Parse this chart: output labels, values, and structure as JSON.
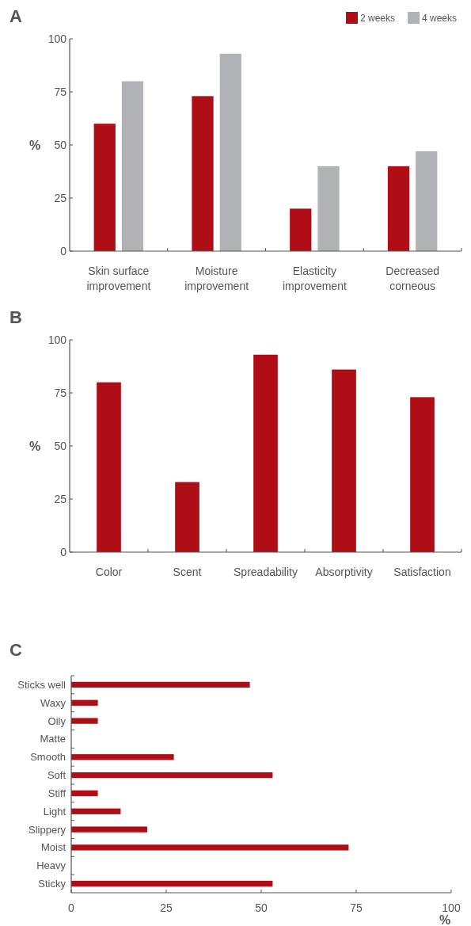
{
  "chart_data": [
    {
      "type": "bar",
      "title": "A",
      "categories": [
        "Skin surface improvement",
        "Moisture improvement",
        "Elasticity improvement",
        "Decreased corneous"
      ],
      "series": [
        {
          "name": "2 weeks",
          "color": "#b00e17",
          "values": [
            60,
            73,
            20,
            40
          ]
        },
        {
          "name": "4 weeks",
          "color": "#b1b2b6",
          "values": [
            80,
            93,
            40,
            47
          ]
        }
      ],
      "ylabel": "%",
      "ylim": [
        0,
        100
      ],
      "yticks": [
        0,
        25,
        50,
        75,
        100
      ],
      "legend": "top right"
    },
    {
      "type": "bar",
      "title": "B",
      "categories": [
        "Color",
        "Scent",
        "Spreadability",
        "Absorptivity",
        "Satisfaction"
      ],
      "values": [
        80,
        33,
        93,
        86,
        73
      ],
      "color": "#b00e17",
      "ylabel": "%",
      "ylim": [
        0,
        100
      ],
      "yticks": [
        0,
        25,
        50,
        75,
        100
      ]
    },
    {
      "type": "bar",
      "orientation": "horizontal",
      "title": "C",
      "categories": [
        "Sticks well",
        "Waxy",
        "Oily",
        "Matte",
        "Smooth",
        "Soft",
        "Stiff",
        "Light",
        "Slippery",
        "Moist",
        "Heavy",
        "Sticky"
      ],
      "values": [
        47,
        7,
        7,
        0,
        27,
        53,
        7,
        13,
        20,
        73,
        0,
        53
      ],
      "color": "#b00e17",
      "xlabel": "%",
      "xlim": [
        0,
        100
      ],
      "xticks": [
        0,
        25,
        50,
        75,
        100
      ]
    }
  ]
}
